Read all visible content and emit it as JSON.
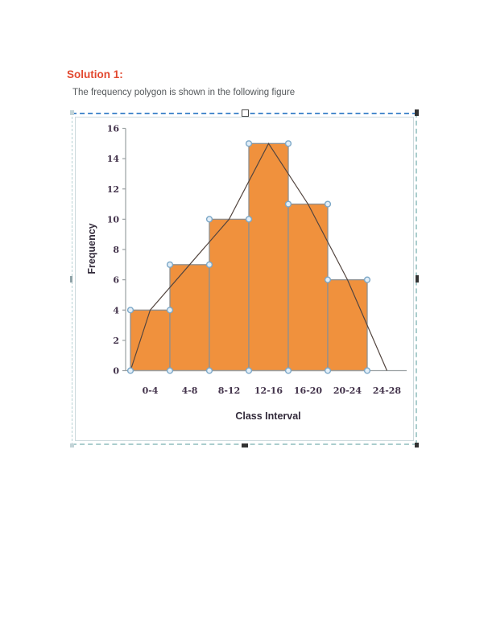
{
  "document": {
    "heading": "Solution 1:",
    "body_text": "The frequency polygon is shown in the following figure"
  },
  "chart_data": {
    "type": "bar",
    "subtype": "histogram_with_frequency_polygon",
    "title": "",
    "xlabel": "Class Interval",
    "ylabel": "Frequency",
    "categories": [
      "0-4",
      "4-8",
      "8-12",
      "12-16",
      "16-20",
      "20-24",
      "24-28"
    ],
    "values": [
      4,
      7,
      10,
      15,
      11,
      6,
      0
    ],
    "class_bounds": [
      0,
      4,
      8,
      12,
      16,
      20,
      24,
      28
    ],
    "series": [
      {
        "name": "histogram bars",
        "values": [
          4,
          7,
          10,
          15,
          11,
          6,
          0
        ]
      },
      {
        "name": "frequency polygon",
        "points": [
          [
            0,
            0
          ],
          [
            2,
            4
          ],
          [
            6,
            7
          ],
          [
            10,
            10
          ],
          [
            14,
            15
          ],
          [
            18,
            11
          ],
          [
            22,
            6
          ],
          [
            26,
            0
          ]
        ]
      }
    ],
    "y_ticks": [
      0,
      2,
      4,
      6,
      8,
      10,
      12,
      14,
      16
    ],
    "ylim": [
      0,
      16
    ],
    "xlim": [
      0,
      28
    ],
    "grid": false,
    "legend": "none",
    "colors": {
      "bar_fill": "#f0913d",
      "bar_border": "#8f8f8f",
      "polygon_line": "#53453f",
      "marker_fill": "#e2eef8",
      "marker_stroke": "#7ba7c7",
      "axis": "#9aa0a2",
      "tick_text": "#43334b",
      "axis_title_text": "#332b3b"
    }
  },
  "selection": {
    "border_top_color": "#4c8ccd",
    "border_side_color": "#aacdcd"
  }
}
